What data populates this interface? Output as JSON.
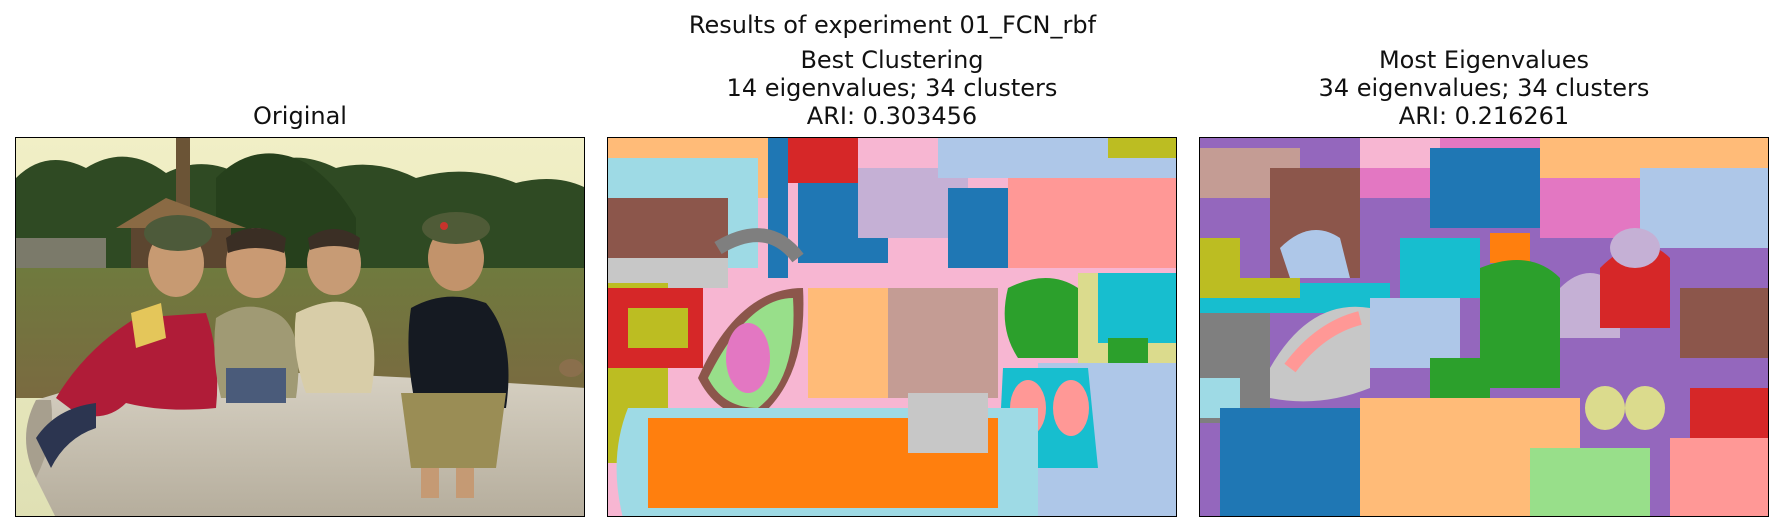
{
  "figure": {
    "suptitle": "Results of experiment 01_FCN_rbf"
  },
  "panels": [
    {
      "title_lines": [
        "Original"
      ],
      "image": "photo-children-on-pipe"
    },
    {
      "title_lines": [
        "Best Clustering",
        "14 eigenvalues; 34 clusters",
        "ARI: 0.303456"
      ],
      "image": "segmentation-map-best"
    },
    {
      "title_lines": [
        "Most Eigenvalues",
        "34 eigenvalues; 34 clusters",
        "ARI: 0.216261"
      ],
      "image": "segmentation-map-most"
    }
  ],
  "palette": {
    "tab_blue": "#1f77b4",
    "tab_orange": "#ff7f0e",
    "tab_green": "#2ca02c",
    "tab_red": "#d62728",
    "tab_purple": "#9467bd",
    "tab_brown": "#8c564b",
    "tab_pink": "#e377c2",
    "tab_gray": "#7f7f7f",
    "tab_olive": "#bcbd22",
    "tab_cyan": "#17becf",
    "light_blue": "#aec7e8",
    "light_orange": "#ffbb78",
    "light_green": "#98df8a",
    "light_red": "#ff9896",
    "light_purple": "#c5b0d5",
    "light_brown": "#c49c94",
    "light_pink": "#f7b6d2",
    "light_gray": "#c7c7c7",
    "light_olive": "#dbdb8d",
    "light_cyan": "#9edae5"
  }
}
